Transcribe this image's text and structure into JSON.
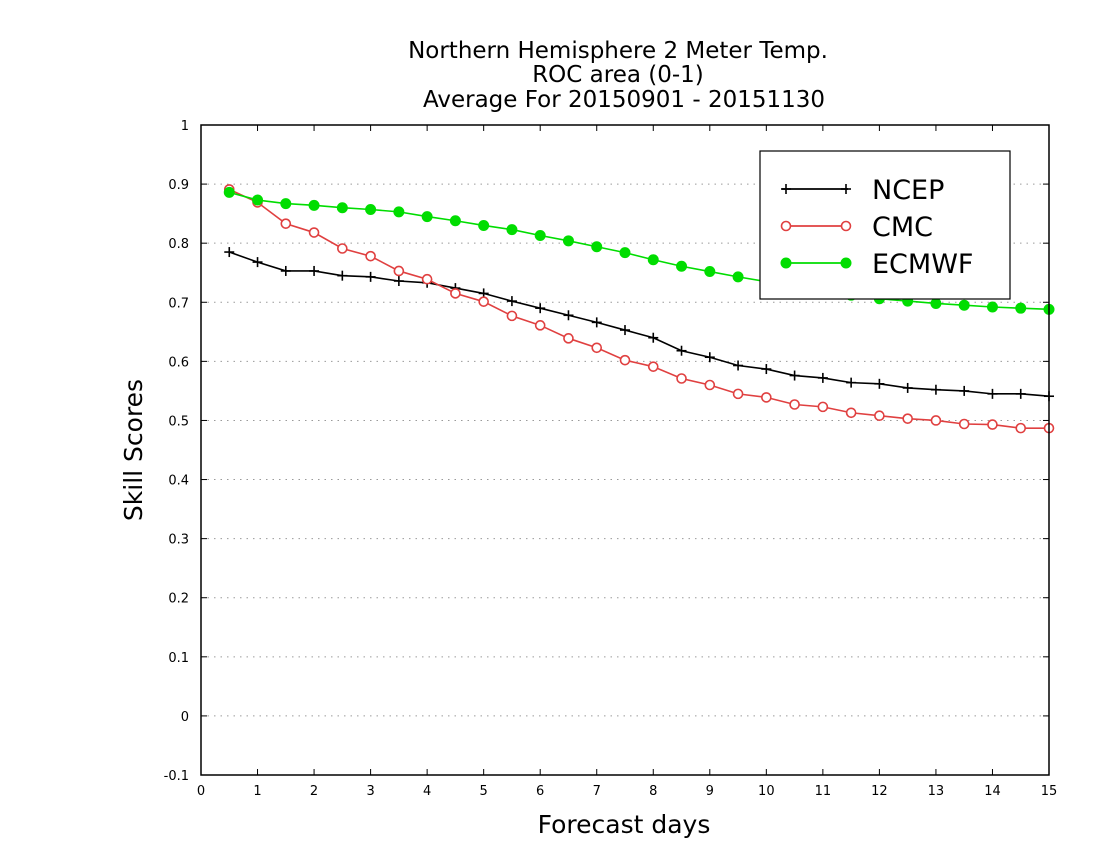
{
  "chart_data": {
    "type": "line",
    "title": [
      "Northern Hemisphere 2 Meter Temp.",
      "ROC area (0-1)",
      "Average For 20150901 - 20151130"
    ],
    "xlabel": "Forecast days",
    "ylabel": "Skill Scores",
    "xlim": [
      0,
      15
    ],
    "ylim": [
      -0.1,
      1
    ],
    "xticks": [
      "0",
      "1",
      "2",
      "3",
      "4",
      "5",
      "6",
      "7",
      "8",
      "9",
      "10",
      "11",
      "12",
      "13",
      "14",
      "15"
    ],
    "yticks": [
      "-0.1",
      "0",
      "0.1",
      "0.2",
      "0.3",
      "0.4",
      "0.5",
      "0.6",
      "0.7",
      "0.8",
      "0.9",
      "1"
    ],
    "grid": "horizontal dotted",
    "legend_position": "top-right",
    "x": [
      0.5,
      1,
      1.5,
      2,
      2.5,
      3,
      3.5,
      4,
      4.5,
      5,
      5.5,
      6,
      6.5,
      7,
      7.5,
      8,
      8.5,
      9,
      9.5,
      10,
      10.5,
      11,
      11.5,
      12,
      12.5,
      13,
      13.5,
      14,
      14.5,
      15
    ],
    "series": [
      {
        "name": "NCEP",
        "color": "#000000",
        "marker": "plus",
        "values": [
          0.785,
          0.768,
          0.753,
          0.753,
          0.745,
          0.743,
          0.736,
          0.733,
          0.724,
          0.715,
          0.702,
          0.69,
          0.678,
          0.666,
          0.653,
          0.64,
          0.618,
          0.607,
          0.593,
          0.587,
          0.576,
          0.572,
          0.564,
          0.562,
          0.555,
          0.552,
          0.55,
          0.545,
          0.545,
          0.541
        ]
      },
      {
        "name": "CMC",
        "color": "#e04040",
        "marker": "open-circle",
        "values": [
          0.891,
          0.869,
          0.833,
          0.818,
          0.791,
          0.778,
          0.753,
          0.739,
          0.715,
          0.701,
          0.677,
          0.661,
          0.639,
          0.623,
          0.602,
          0.591,
          0.571,
          0.56,
          0.545,
          0.539,
          0.527,
          0.523,
          0.513,
          0.508,
          0.503,
          0.5,
          0.494,
          0.493,
          0.487,
          0.487
        ]
      },
      {
        "name": "ECMWF",
        "color": "#00dd00",
        "marker": "filled-circle",
        "values": [
          0.886,
          0.873,
          0.867,
          0.864,
          0.86,
          0.857,
          0.853,
          0.845,
          0.838,
          0.83,
          0.823,
          0.813,
          0.804,
          0.794,
          0.784,
          0.772,
          0.761,
          0.752,
          0.743,
          0.735,
          0.727,
          0.719,
          0.712,
          0.706,
          0.702,
          0.698,
          0.695,
          0.692,
          0.69,
          0.688
        ]
      }
    ]
  }
}
